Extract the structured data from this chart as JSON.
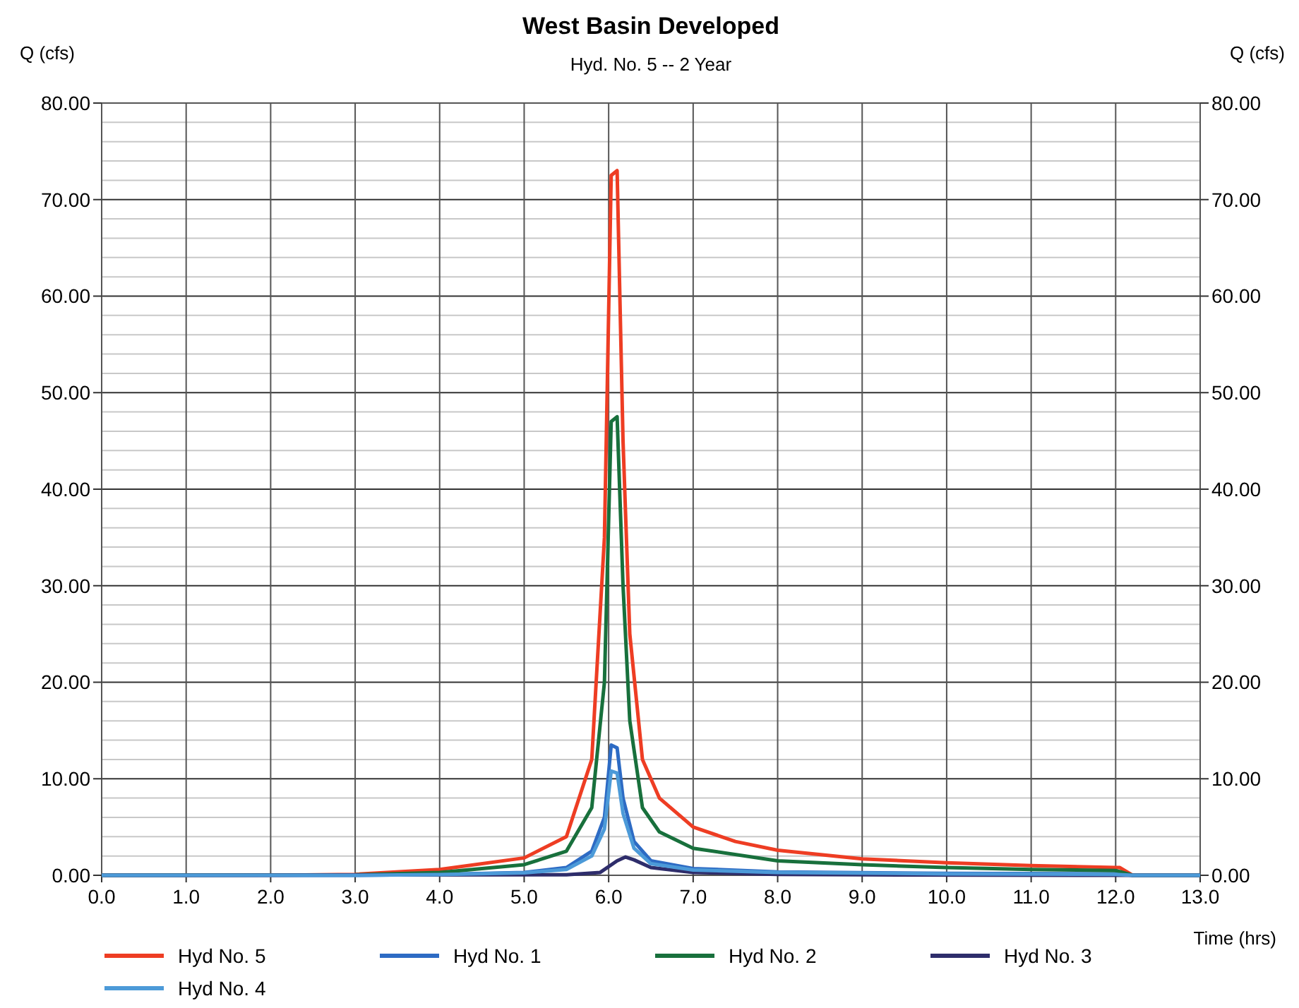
{
  "chart_data": {
    "type": "line",
    "title": "West Basin Developed",
    "subtitle": "Hyd. No. 5 -- 2 Year",
    "ylabel": "Q (cfs)",
    "y2label": "Q (cfs)",
    "xlabel": "Time (hrs)",
    "xlim": [
      0,
      13
    ],
    "xticks": [
      {
        "value": 0,
        "label": "0.0"
      },
      {
        "value": 1,
        "label": "1.0"
      },
      {
        "value": 2,
        "label": "2.0"
      },
      {
        "value": 3,
        "label": "3.0"
      },
      {
        "value": 4,
        "label": "4.0"
      },
      {
        "value": 5,
        "label": "5.0"
      },
      {
        "value": 6,
        "label": "6.0"
      },
      {
        "value": 7,
        "label": "7.0"
      },
      {
        "value": 8,
        "label": "8.0"
      },
      {
        "value": 9,
        "label": "9.0"
      },
      {
        "value": 10,
        "label": "10.0"
      },
      {
        "value": 11,
        "label": "11.0"
      },
      {
        "value": 12,
        "label": "12.0"
      },
      {
        "value": 13,
        "label": "13.0"
      }
    ],
    "ylim": [
      0,
      80
    ],
    "yticks": [
      {
        "value": 0,
        "label": "0.00"
      },
      {
        "value": 10,
        "label": "10.00"
      },
      {
        "value": 20,
        "label": "20.00"
      },
      {
        "value": 30,
        "label": "30.00"
      },
      {
        "value": 40,
        "label": "40.00"
      },
      {
        "value": 50,
        "label": "50.00"
      },
      {
        "value": 60,
        "label": "60.00"
      },
      {
        "value": 70,
        "label": "70.00"
      },
      {
        "value": 80,
        "label": "80.00"
      }
    ],
    "y2lim": [
      0,
      80
    ],
    "y2ticks": [
      {
        "value": 0,
        "label": "0.00"
      },
      {
        "value": 10,
        "label": "10.00"
      },
      {
        "value": 20,
        "label": "20.00"
      },
      {
        "value": 30,
        "label": "30.00"
      },
      {
        "value": 40,
        "label": "40.00"
      },
      {
        "value": 50,
        "label": "50.00"
      },
      {
        "value": 60,
        "label": "60.00"
      },
      {
        "value": 70,
        "label": "70.00"
      },
      {
        "value": 80,
        "label": "80.00"
      }
    ],
    "grid": true,
    "legend": "bottom",
    "marker": "none",
    "line_style": "solid",
    "series": [
      {
        "name": "Hyd No. 5",
        "color": "#ee3d23",
        "x": [
          0,
          2,
          3,
          4,
          5,
          5.5,
          5.8,
          5.95,
          6.03,
          6.1,
          6.17,
          6.25,
          6.4,
          6.6,
          7,
          7.5,
          8,
          9,
          10,
          11,
          12,
          12.05,
          12.2,
          13
        ],
        "values": [
          0,
          0,
          0.1,
          0.6,
          1.8,
          4,
          12,
          35,
          72.5,
          73,
          45,
          25,
          12,
          8,
          5,
          3.5,
          2.6,
          1.7,
          1.3,
          1,
          0.8,
          0.8,
          0,
          0
        ]
      },
      {
        "name": "Hyd No. 1",
        "color": "#2d6bc4",
        "x": [
          0,
          3,
          4,
          5,
          5.5,
          5.8,
          5.95,
          6.03,
          6.1,
          6.17,
          6.3,
          6.5,
          7,
          8,
          10,
          12,
          12.2,
          13
        ],
        "values": [
          0,
          0,
          0.1,
          0.3,
          0.8,
          2.5,
          6,
          13.5,
          13.2,
          8,
          3.5,
          1.5,
          0.7,
          0.35,
          0.2,
          0.15,
          0,
          0
        ]
      },
      {
        "name": "Hyd No. 2",
        "color": "#18703c",
        "x": [
          0,
          3,
          4,
          5,
          5.5,
          5.8,
          5.95,
          6.03,
          6.1,
          6.17,
          6.25,
          6.4,
          6.6,
          7,
          8,
          9,
          10,
          11,
          12,
          12.2,
          13
        ],
        "values": [
          0,
          0.05,
          0.3,
          1.1,
          2.5,
          7,
          20,
          47,
          47.5,
          30,
          16,
          7,
          4.5,
          2.8,
          1.5,
          1.1,
          0.8,
          0.6,
          0.5,
          0,
          0
        ]
      },
      {
        "name": "Hyd No. 3",
        "color": "#2e2d6b",
        "x": [
          0,
          5.5,
          5.9,
          6.1,
          6.2,
          6.3,
          6.5,
          7,
          8,
          9,
          12,
          13
        ],
        "values": [
          0,
          0.05,
          0.3,
          1.5,
          1.9,
          1.6,
          0.8,
          0.3,
          0.1,
          0.05,
          0,
          0
        ]
      },
      {
        "name": "Hyd No. 4",
        "color": "#4c9ad8",
        "x": [
          0,
          3,
          4,
          5,
          5.5,
          5.8,
          5.95,
          6.03,
          6.1,
          6.17,
          6.3,
          6.5,
          7,
          8,
          10,
          12,
          12.2,
          13
        ],
        "values": [
          0,
          0,
          0.08,
          0.25,
          0.6,
          2,
          4.8,
          10.8,
          10.6,
          6.4,
          2.8,
          1.2,
          0.55,
          0.3,
          0.15,
          0.1,
          0,
          0
        ]
      }
    ]
  }
}
